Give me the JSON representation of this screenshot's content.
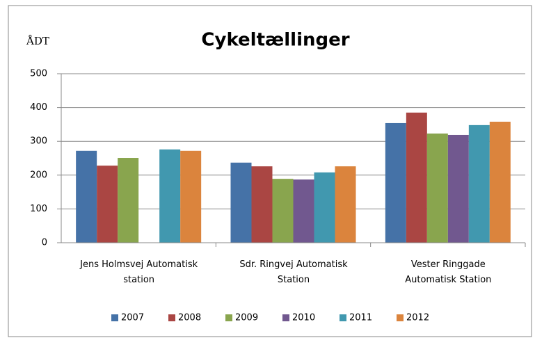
{
  "chart_data": {
    "type": "bar",
    "title": "Cykeltællinger",
    "y_label": "ÅDT",
    "categories": [
      "Jens Holmsvej Automatisk station",
      "Sdr. Ringvej Automatisk Station",
      "Vester Ringgade Automatisk Station"
    ],
    "series": [
      {
        "name": "2007",
        "color": "#4572a7",
        "values": [
          272,
          237,
          354
        ]
      },
      {
        "name": "2008",
        "color": "#aa4643",
        "values": [
          228,
          226,
          385
        ]
      },
      {
        "name": "2009",
        "color": "#89a54e",
        "values": [
          251,
          189,
          323
        ]
      },
      {
        "name": "2010",
        "color": "#71588f",
        "values": [
          null,
          187,
          319
        ]
      },
      {
        "name": "2011",
        "color": "#4198af",
        "values": [
          276,
          208,
          348
        ]
      },
      {
        "name": "2012",
        "color": "#db843d",
        "values": [
          272,
          226,
          358
        ]
      }
    ],
    "ylim": [
      0,
      500
    ],
    "yticks": [
      0,
      100,
      200,
      300,
      400,
      500
    ],
    "grid": true,
    "legend": "bottom"
  }
}
